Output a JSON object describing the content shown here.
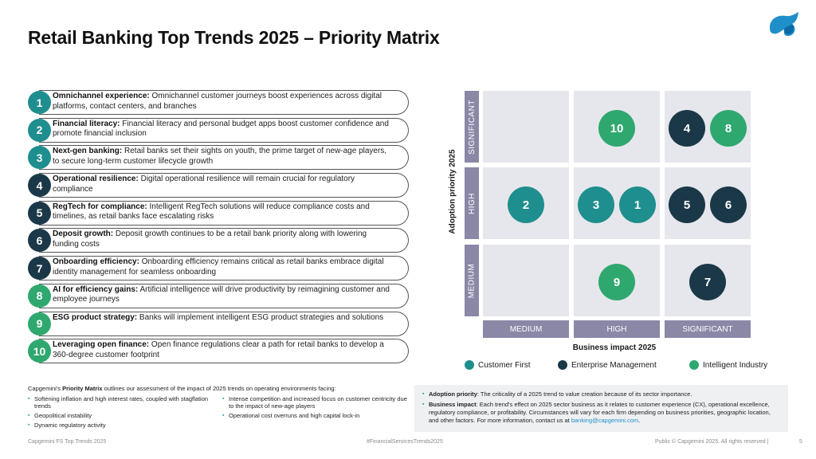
{
  "title": "Retail Banking Top Trends 2025 – Priority Matrix",
  "colors": {
    "customer_first": "#1f8e8e",
    "enterprise_management": "#1b3848",
    "intelligent_industry": "#2fa86f",
    "axis_label_bg": "#8a88a6",
    "cell_bg": "#e6e7ec"
  },
  "trends": [
    {
      "num": "1",
      "name": "Omnichannel experience:",
      "desc": "Omnichannel customer journeys boost experiences across digital platforms, contact centers, and branches",
      "category": "customer_first"
    },
    {
      "num": "2",
      "name": "Financial literacy:",
      "desc": "Financial literacy and personal budget apps boost customer confidence and promote financial inclusion",
      "category": "customer_first"
    },
    {
      "num": "3",
      "name": "Next-gen banking:",
      "desc": "Retail banks set their sights on youth, the prime target of new-age players, to secure long-term customer lifecycle growth",
      "category": "customer_first"
    },
    {
      "num": "4",
      "name": "Operational resilience:",
      "desc": "Digital operational resilience will remain crucial for regulatory compliance",
      "category": "enterprise_management"
    },
    {
      "num": "5",
      "name": "RegTech for compliance:",
      "desc": "Intelligent RegTech solutions will reduce compliance costs and timelines, as retail banks face escalating risks",
      "category": "enterprise_management"
    },
    {
      "num": "6",
      "name": "Deposit growth:",
      "desc": "Deposit growth continues to be a retail bank priority along with lowering funding costs",
      "category": "enterprise_management"
    },
    {
      "num": "7",
      "name": "Onboarding efficiency:",
      "desc": "Onboarding efficiency remains critical as retail banks embrace digital identity management for seamless onboarding",
      "category": "enterprise_management"
    },
    {
      "num": "8",
      "name": "AI for efficiency gains:",
      "desc": "Artificial intelligence will drive productivity by reimagining customer and employee journeys",
      "category": "intelligent_industry"
    },
    {
      "num": "9",
      "name": "ESG product strategy:",
      "desc": "Banks will implement intelligent ESG product strategies and solutions",
      "category": "intelligent_industry"
    },
    {
      "num": "10",
      "name": "Leveraging open finance:",
      "desc": "Open finance regulations clear a path for retail banks to develop a 360-degree customer footprint",
      "category": "intelligent_industry"
    }
  ],
  "matrix": {
    "y_axis_title": "Adoption priority 2025",
    "x_axis_title": "Business impact 2025",
    "y_levels": [
      "SIGNIFICANT",
      "HIGH",
      "MEDIUM"
    ],
    "x_levels": [
      "MEDIUM",
      "HIGH",
      "SIGNIFICANT"
    ],
    "placements": [
      {
        "num": "10",
        "adoption": "SIGNIFICANT",
        "impact": "HIGH",
        "category": "intelligent_industry"
      },
      {
        "num": "4",
        "adoption": "SIGNIFICANT",
        "impact": "SIGNIFICANT",
        "category": "enterprise_management"
      },
      {
        "num": "8",
        "adoption": "SIGNIFICANT",
        "impact": "SIGNIFICANT",
        "category": "intelligent_industry"
      },
      {
        "num": "2",
        "adoption": "HIGH",
        "impact": "MEDIUM",
        "category": "customer_first"
      },
      {
        "num": "3",
        "adoption": "HIGH",
        "impact": "HIGH",
        "category": "customer_first"
      },
      {
        "num": "1",
        "adoption": "HIGH",
        "impact": "HIGH",
        "category": "customer_first"
      },
      {
        "num": "5",
        "adoption": "HIGH",
        "impact": "SIGNIFICANT",
        "category": "enterprise_management"
      },
      {
        "num": "6",
        "adoption": "HIGH",
        "impact": "SIGNIFICANT",
        "category": "enterprise_management"
      },
      {
        "num": "9",
        "adoption": "MEDIUM",
        "impact": "HIGH",
        "category": "intelligent_industry"
      },
      {
        "num": "7",
        "adoption": "MEDIUM",
        "impact": "SIGNIFICANT",
        "category": "enterprise_management"
      }
    ]
  },
  "legend": {
    "customer_first": "Customer First",
    "enterprise_management": "Enterprise Management",
    "intelligent_industry": "Intelligent Industry"
  },
  "footnote": {
    "intro_prefix": "Capgemini's ",
    "intro_bold": "Priority Matrix",
    "intro_suffix": " outlines our assessment of the impact of 2025 trends on operating environments facing:",
    "col1": [
      "Softening inflation and high interest rates, coupled with stagflation trends",
      "Geopolitical instability",
      "Dynamic regulatory activity"
    ],
    "col2": [
      "Intense competition and increased focus on customer centricity due to the impact of new-age players",
      "Operational cost overruns and high capital lock-in"
    ]
  },
  "definitions": {
    "adoption_term": "Adoption priority",
    "adoption_text": ": The criticality of a 2025 trend to value creation because of its sector importance.",
    "impact_term": "Business impact",
    "impact_text": ": Each trend's effect on 2025 sector business as it relates to customer experience (CX), operational excellence, regulatory compliance, or profitability. Circumstances will vary for each firm depending on business priorities, geographic location, and other factors. For more information, contact us at ",
    "email": "banking@capgemini.com",
    "period": "."
  },
  "footer": {
    "left": "Capgemini FS Top Trends 2025",
    "center": "#FinancialServicesTrends2025",
    "right": "Public © Capgemini 2025. All rights reserved  |",
    "page": "5"
  }
}
